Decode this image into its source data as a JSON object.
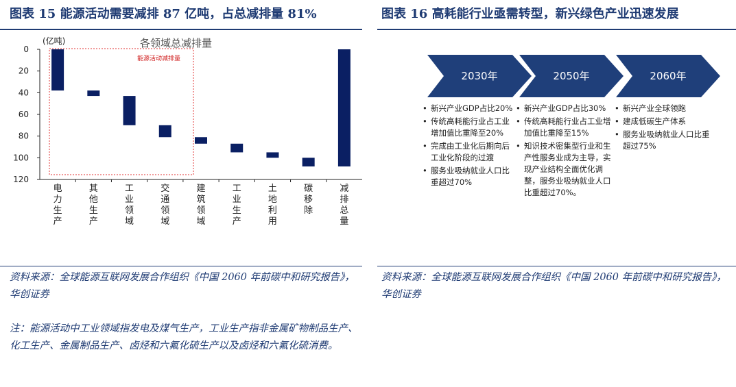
{
  "left": {
    "title": "图表 15   能源活动需要减排 87 亿吨，占总减排量 81%",
    "source": "资料来源：全球能源互联网发展合作组织《中国 2060 年前碳中和研究报告》，华创证券",
    "note": "注：能源活动中工业领域指发电及煤气生产，工业生产指非金属矿物制品生产、化工生产、金属制品生产、卤烃和六氟化硫生产以及卤烃和六氟化硫消费。"
  },
  "right": {
    "title": "图表 16   高耗能行业亟需转型，新兴绿色产业迅速发展",
    "source": "资料来源：全球能源互联网发展合作组织《中国 2060 年前碳中和研究报告》，华创证券",
    "arrows": [
      "2030年",
      "2050年",
      "2060年"
    ],
    "columns": [
      [
        "新兴产业GDP占比20%",
        "传统高耗能行业占工业增加值比重降至20%",
        "完成由工业化后期向后工业化阶段的过渡",
        "服务业吸纳就业人口比重超过70%"
      ],
      [
        "新兴产业GDP占比30%",
        "传统高耗能行业占工业增加值比重降至15%",
        "知识技术密集型行业和生产性服务业成为主导，实现产业结构全面优化调整，服务业吸纳就业人口比重超过70%。"
      ],
      [
        "新兴产业全球领跑",
        "建成低碳生产体系",
        "服务业吸纳就业人口比重超过75%"
      ]
    ]
  },
  "chart_data": {
    "type": "bar",
    "subtype": "floating-waterfall",
    "title": "各领域总减排量",
    "unit_label": "(亿吨)",
    "annotation": "能源活动减排量",
    "ylim": [
      0,
      120
    ],
    "y_inverted": true,
    "yticks": [
      0,
      20,
      40,
      60,
      80,
      100,
      120
    ],
    "categories": [
      "电力生产",
      "其他生产",
      "工业领域",
      "交通领域",
      "建筑领域",
      "工业生产",
      "土地利用",
      "碳移除",
      "减排总量"
    ],
    "ranges": [
      [
        0,
        38
      ],
      [
        38,
        43
      ],
      [
        43,
        70
      ],
      [
        70,
        81
      ],
      [
        81,
        87
      ],
      [
        87,
        95
      ],
      [
        95,
        100
      ],
      [
        100,
        108
      ],
      [
        0,
        108
      ]
    ],
    "bar_color": "#0a1f63"
  }
}
